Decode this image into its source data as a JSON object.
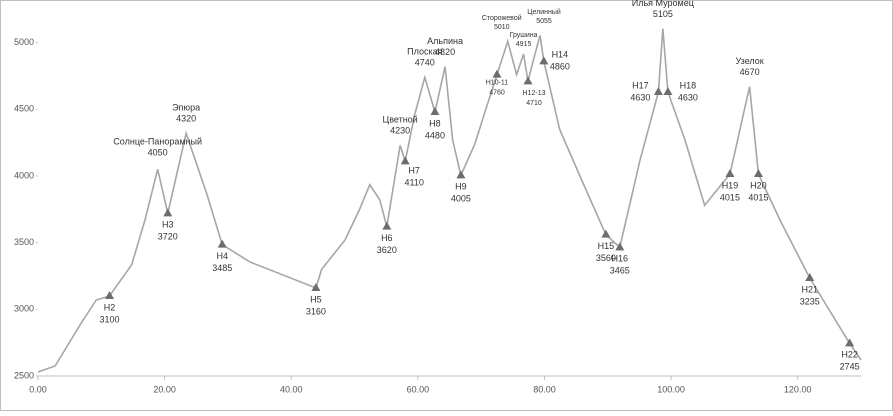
{
  "chart_data": {
    "type": "line",
    "x": [
      0,
      2.7,
      6.6,
      9.2,
      11.3,
      14.8,
      16.9,
      18.9,
      20.5,
      23.4,
      26.7,
      29.1,
      33.5,
      43.9,
      44.8,
      48.5,
      50.8,
      52.4,
      54.0,
      55.1,
      57.2,
      58.0,
      59.5,
      61.1,
      62.7,
      64.3,
      65.5,
      66.8,
      69.0,
      70.6,
      72.5,
      74.2,
      75.6,
      76.7,
      77.4,
      78.2,
      79.3,
      79.9,
      82.4,
      85.6,
      89.7,
      91.9,
      95.1,
      98.0,
      98.7,
      99.5,
      102.2,
      105.3,
      109.3,
      112.4,
      113.8,
      117.2,
      121.9,
      128.2,
      130.0
    ],
    "values": [
      2530,
      2575,
      2880,
      3070,
      3100,
      3335,
      3670,
      4050,
      3720,
      4320,
      3860,
      3485,
      3355,
      3160,
      3300,
      3520,
      3750,
      3935,
      3820,
      3620,
      4230,
      4110,
      4460,
      4740,
      4480,
      4820,
      4270,
      4005,
      4240,
      4480,
      4760,
      5010,
      4760,
      4915,
      4710,
      4860,
      5055,
      4860,
      4350,
      4000,
      3560,
      3465,
      4120,
      4630,
      5105,
      4630,
      4270,
      3780,
      4015,
      4670,
      4015,
      3670,
      3235,
      2745,
      2620
    ],
    "color": "#a6a6a6",
    "xlim": [
      0,
      130
    ],
    "ylim": [
      2500,
      5200
    ],
    "xticks": [
      {
        "value": 0,
        "label": "0.00"
      },
      {
        "value": 20,
        "label": "20.00"
      },
      {
        "value": 40,
        "label": "40.00"
      },
      {
        "value": 60,
        "label": "60.00"
      },
      {
        "value": 80,
        "label": "80.00"
      },
      {
        "value": 100,
        "label": "100.00"
      },
      {
        "value": 120,
        "label": "120.00"
      }
    ],
    "yticks": [
      2500,
      3000,
      3500,
      4000,
      4500,
      5000
    ],
    "huts": [
      {
        "name": "H2",
        "x": 11.3,
        "value": 3100
      },
      {
        "name": "H3",
        "x": 20.5,
        "value": 3720
      },
      {
        "name": "H4",
        "x": 29.1,
        "value": 3485
      },
      {
        "name": "H5",
        "x": 43.9,
        "value": 3160
      },
      {
        "name": "H6",
        "x": 55.1,
        "value": 3620
      },
      {
        "name": "H7",
        "x": 58.0,
        "value": 4110
      },
      {
        "name": "H8",
        "x": 62.7,
        "value": 4480
      },
      {
        "name": "H9",
        "x": 66.8,
        "value": 4005
      },
      {
        "name": "H10-11",
        "x": 72.5,
        "value": 4760
      },
      {
        "name": "H12-13",
        "x": 77.4,
        "value": 4710
      },
      {
        "name": "H14",
        "x": 79.9,
        "value": 4860
      },
      {
        "name": "H15",
        "x": 89.7,
        "value": 3560
      },
      {
        "name": "H16",
        "x": 91.9,
        "value": 3465
      },
      {
        "name": "H17",
        "x": 98.0,
        "value": 4630
      },
      {
        "name": "H18",
        "x": 99.5,
        "value": 4630
      },
      {
        "name": "H19",
        "x": 109.3,
        "value": 4015
      },
      {
        "name": "H20",
        "x": 113.8,
        "value": 4015
      },
      {
        "name": "H21",
        "x": 121.9,
        "value": 3235
      },
      {
        "name": "H22",
        "x": 128.2,
        "value": 2745
      }
    ],
    "peaks": [
      {
        "name": "Солнце-Панорамный",
        "x": 18.9,
        "value": 4050
      },
      {
        "name": "Эпюра",
        "x": 23.4,
        "value": 4320
      },
      {
        "name": "Цветной",
        "x": 57.2,
        "value": 4230
      },
      {
        "name": "Плоская",
        "x": 61.1,
        "value": 4740
      },
      {
        "name": "Альпина",
        "x": 64.3,
        "value": 4820
      },
      {
        "name": "Сторожевой",
        "x": 74.2,
        "value": 5010
      },
      {
        "name": "Грушина",
        "x": 76.7,
        "value": 4915
      },
      {
        "name": "Целинный",
        "x": 79.3,
        "value": 5055
      },
      {
        "name": "Илья Муромец",
        "x": 98.7,
        "value": 5105
      },
      {
        "name": "Узелок",
        "x": 112.4,
        "value": 4670
      }
    ],
    "marker_color": "#6d6d6d",
    "grid": false
  }
}
